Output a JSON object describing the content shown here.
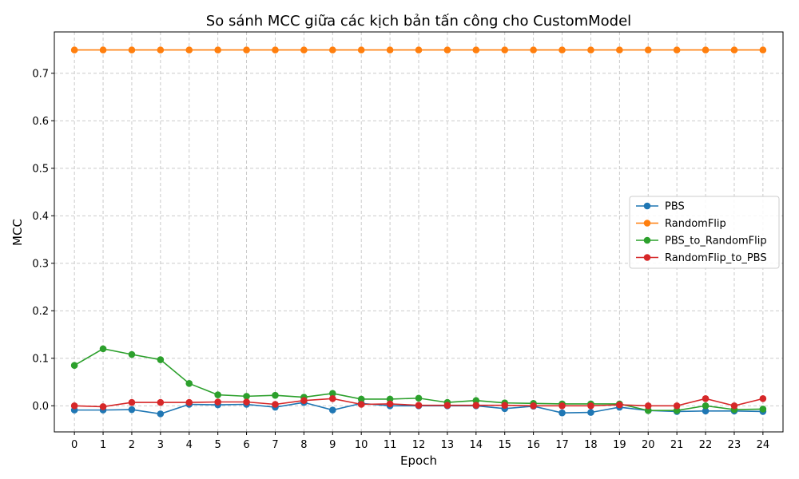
{
  "chart_data": {
    "type": "line",
    "title": "So sánh MCC giữa các kịch bản tấn công cho CustomModel",
    "xlabel": "Epoch",
    "ylabel": "MCC",
    "x": [
      0,
      1,
      2,
      3,
      4,
      5,
      6,
      7,
      8,
      9,
      10,
      11,
      12,
      13,
      14,
      15,
      16,
      17,
      18,
      19,
      20,
      21,
      22,
      23,
      24
    ],
    "xticks": [
      "0",
      "1",
      "2",
      "3",
      "4",
      "5",
      "6",
      "7",
      "8",
      "9",
      "10",
      "11",
      "12",
      "13",
      "14",
      "15",
      "16",
      "17",
      "18",
      "19",
      "20",
      "21",
      "22",
      "23",
      "24"
    ],
    "yticks": [
      "0.0",
      "0.1",
      "0.2",
      "0.3",
      "0.4",
      "0.5",
      "0.6",
      "0.7"
    ],
    "yticks_values": [
      0.0,
      0.1,
      0.2,
      0.3,
      0.4,
      0.5,
      0.6,
      0.7
    ],
    "xlim": [
      -0.7,
      24.7
    ],
    "ylim": [
      -0.055,
      0.787
    ],
    "grid": true,
    "legend_position": "center-right",
    "series": [
      {
        "name": "PBS",
        "color": "#1f77b4",
        "values": [
          -0.009,
          -0.009,
          -0.008,
          -0.017,
          0.003,
          0.002,
          0.003,
          -0.003,
          0.007,
          -0.009,
          0.005,
          0.0,
          0.0,
          0.0,
          0.0,
          -0.006,
          -0.001,
          -0.015,
          -0.014,
          -0.003,
          -0.01,
          -0.012,
          -0.011,
          -0.011,
          -0.012
        ]
      },
      {
        "name": "RandomFlip",
        "color": "#ff7f0e",
        "values": [
          0.749,
          0.749,
          0.749,
          0.749,
          0.749,
          0.749,
          0.749,
          0.749,
          0.749,
          0.749,
          0.749,
          0.749,
          0.749,
          0.749,
          0.749,
          0.749,
          0.749,
          0.749,
          0.749,
          0.749,
          0.749,
          0.749,
          0.749,
          0.749,
          0.749
        ]
      },
      {
        "name": "PBS_to_RandomFlip",
        "color": "#2ca02c",
        "values": [
          0.085,
          0.12,
          0.108,
          0.097,
          0.047,
          0.023,
          0.02,
          0.022,
          0.018,
          0.026,
          0.014,
          0.014,
          0.016,
          0.007,
          0.011,
          0.006,
          0.005,
          0.004,
          0.004,
          0.004,
          -0.01,
          -0.01,
          0.0,
          -0.008,
          -0.007
        ]
      },
      {
        "name": "RandomFlip_to_PBS",
        "color": "#d62728",
        "values": [
          0.0,
          -0.002,
          0.007,
          0.007,
          0.007,
          0.008,
          0.008,
          0.003,
          0.011,
          0.015,
          0.003,
          0.004,
          0.001,
          0.001,
          0.001,
          0.001,
          0.0,
          0.0,
          0.0,
          0.002,
          0.0,
          0.0,
          0.015,
          0.0,
          0.015
        ]
      }
    ]
  }
}
